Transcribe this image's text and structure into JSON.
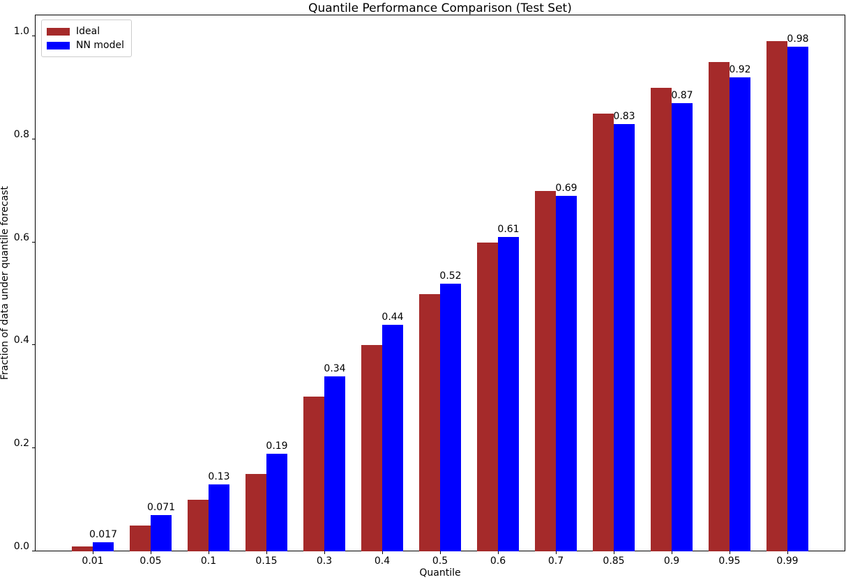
{
  "chart_data": {
    "type": "bar",
    "title": "Quantile Performance Comparison (Test Set)",
    "xlabel": "Quantile",
    "ylabel": "Fraction of data under quantile forecast",
    "categories": [
      "0.01",
      "0.05",
      "0.1",
      "0.15",
      "0.3",
      "0.4",
      "0.5",
      "0.6",
      "0.7",
      "0.85",
      "0.9",
      "0.95",
      "0.99"
    ],
    "series": [
      {
        "name": "Ideal",
        "color": "#a52a2a",
        "values": [
          0.01,
          0.05,
          0.1,
          0.15,
          0.3,
          0.4,
          0.5,
          0.6,
          0.7,
          0.85,
          0.9,
          0.95,
          0.99
        ]
      },
      {
        "name": "NN model",
        "color": "#0000ff",
        "values": [
          0.017,
          0.071,
          0.13,
          0.19,
          0.34,
          0.44,
          0.52,
          0.61,
          0.69,
          0.83,
          0.87,
          0.92,
          0.98
        ],
        "bar_labels": [
          "0.017",
          "0.071",
          "0.13",
          "0.19",
          "0.34",
          "0.44",
          "0.52",
          "0.61",
          "0.69",
          "0.83",
          "0.87",
          "0.92",
          "0.98"
        ]
      }
    ],
    "yticks": [
      "0.0",
      "0.2",
      "0.4",
      "0.6",
      "0.8",
      "1.0"
    ],
    "ylim": [
      0,
      1.042
    ],
    "grid": false,
    "legend_position": "upper left",
    "background_color": "#ffffff",
    "spine_color": "#000000"
  }
}
